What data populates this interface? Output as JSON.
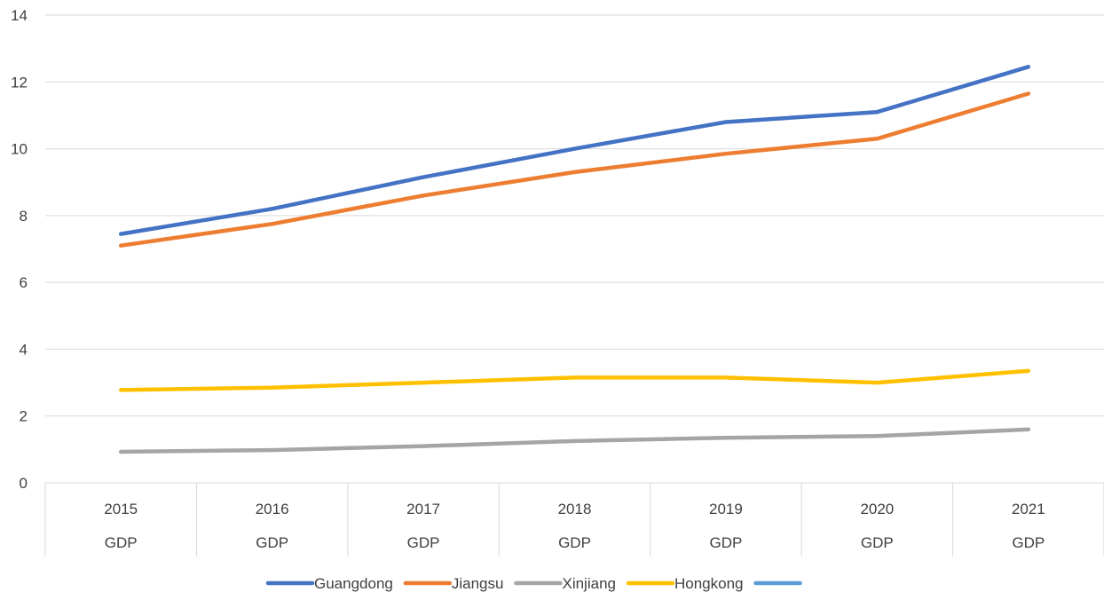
{
  "chart_data": {
    "type": "line",
    "categories": [
      "2015",
      "2016",
      "2017",
      "2018",
      "2019",
      "2020",
      "2021"
    ],
    "category_sublabels": [
      "GDP",
      "GDP",
      "GDP",
      "GDP",
      "GDP",
      "GDP",
      "GDP"
    ],
    "ylim": [
      0,
      14
    ],
    "yticks": [
      0,
      2,
      4,
      6,
      8,
      10,
      12,
      14
    ],
    "grid": true,
    "legend_position": "bottom",
    "series": [
      {
        "name": "Guangdong",
        "color": "#4472C4",
        "values": [
          7.45,
          8.2,
          9.15,
          10.0,
          10.8,
          11.1,
          12.45
        ]
      },
      {
        "name": "Jiangsu",
        "color": "#ED7D31",
        "values": [
          7.1,
          7.75,
          8.6,
          9.3,
          9.85,
          10.3,
          11.65
        ]
      },
      {
        "name": "Xinjiang",
        "color": "#A5A5A5",
        "values": [
          0.93,
          0.98,
          1.1,
          1.25,
          1.35,
          1.4,
          1.6
        ]
      },
      {
        "name": "Hongkong",
        "color": "#FFC000",
        "values": [
          2.78,
          2.85,
          3.0,
          3.15,
          3.15,
          3.0,
          3.35
        ]
      }
    ],
    "legend_extra": {
      "name": "",
      "color": "#5B9BD5"
    }
  }
}
